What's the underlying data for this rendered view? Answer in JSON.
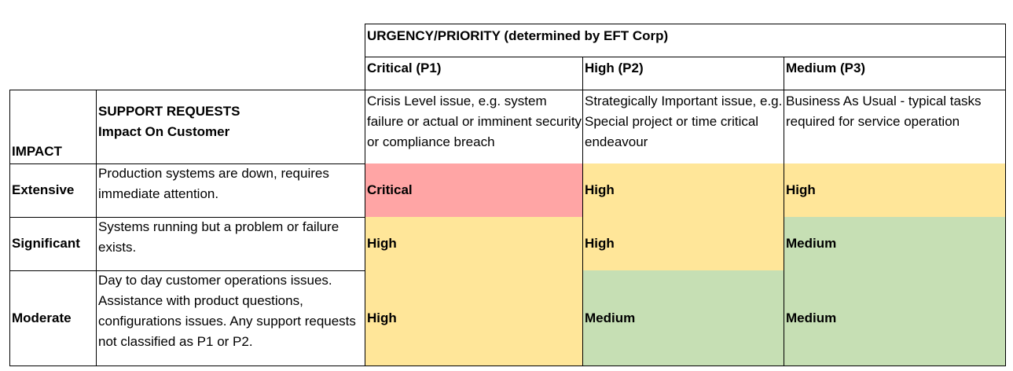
{
  "header": {
    "urgency_title": "URGENCY/PRIORITY (determined by EFT Corp)",
    "impact_label": "IMPACT",
    "support_title_line1": "SUPPORT REQUESTS",
    "support_title_line2": "Impact On Customer"
  },
  "priorities": [
    {
      "label": "Critical (P1)",
      "description": "Crisis Level issue, e.g. system failure or actual or imminent security or compliance breach"
    },
    {
      "label": "High (P2)",
      "description": "Strategically Important issue, e.g. Special project or time critical endeavour"
    },
    {
      "label": "Medium (P3)",
      "description": "Business As Usual - typical tasks required for service operation"
    }
  ],
  "rows": [
    {
      "impact": "Extensive",
      "description": "Production systems are down, requires immediate attention.",
      "results": [
        "Critical",
        "High",
        "High"
      ]
    },
    {
      "impact": "Significant",
      "description": "Systems running but a problem or failure exists.",
      "results": [
        "High",
        "High",
        "Medium"
      ]
    },
    {
      "impact": "Moderate",
      "description": "Day to day customer operations issues. Assistance with product questions, configurations issues. Any support requests not classified as P1 or P2.",
      "results": [
        "High",
        "Medium",
        "Medium"
      ]
    }
  ],
  "colors": {
    "critical": "#ffa5a5",
    "high": "#ffe699",
    "medium": "#c6dfb4"
  }
}
